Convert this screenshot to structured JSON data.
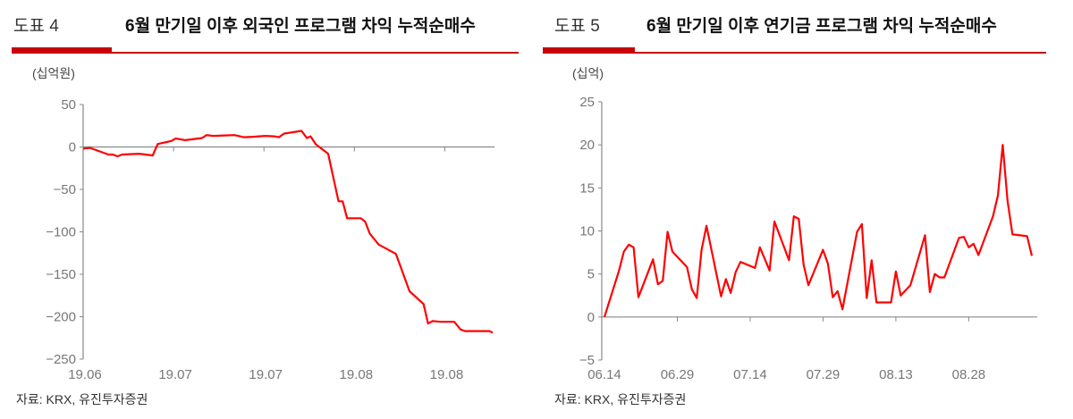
{
  "panels": [
    {
      "figure_no": "도표 4",
      "title": "6월 만기일 이후 외국인 프로그램 차익 누적순매수",
      "unit": "(십억원)",
      "source": "자료: KRX, 유진투자증권"
    },
    {
      "figure_no": "도표 5",
      "title": "6월 만기일 이후 연기금 프로그램 차익 누적순매수",
      "unit": "(십억)",
      "source": "자료: KRX, 유진투자증권"
    }
  ],
  "colors": {
    "accent": "#c8000a",
    "line": "#ff0000",
    "axis": "#888888"
  },
  "chart_data": [
    {
      "type": "line",
      "title": "6월 만기일 이후 외국인 프로그램 차익 누적순매수",
      "ylabel": "(십억원)",
      "ylim": [
        -250,
        50
      ],
      "yticks": [
        50,
        0,
        -50,
        -100,
        -150,
        -200,
        -250
      ],
      "ytick_labels": [
        "50",
        "0",
        "-50",
        "-100",
        "-150",
        "-200",
        "-250"
      ],
      "xlim": [
        0,
        90.6
      ],
      "xticks": [
        0,
        20,
        40,
        60,
        80
      ],
      "xtick_labels": [
        "19.06",
        "19.07",
        "19.07",
        "19.08",
        "19.08"
      ],
      "series": [
        {
          "name": "외국인 프로그램 차익 누적순매수",
          "x": [
            0,
            1.5,
            5.6,
            6.6,
            7.6,
            8.6,
            12.4,
            15.4,
            16.5,
            19.5,
            20.5,
            22.6,
            26.3,
            27.3,
            28.7,
            33.5,
            35.5,
            37.6,
            40.3,
            42.3,
            43.3,
            44.4,
            48.3,
            49.5,
            50.3,
            51.5,
            54.2,
            56.5,
            57.4,
            58.4,
            61.4,
            62.4,
            63.4,
            65.4,
            69.2,
            72.2,
            75.3,
            76.3,
            77.3,
            79,
            82.1,
            83.5,
            84.5,
            85.9,
            89.9,
            90.6
          ],
          "y": [
            -2,
            -1,
            -9,
            -9,
            -11,
            -9,
            -8,
            -10,
            3.5,
            7,
            10,
            8,
            10.5,
            14,
            13,
            14,
            11.5,
            12,
            13,
            12.5,
            11.5,
            15.7,
            19,
            10.5,
            12.5,
            3,
            -8,
            -64,
            -64,
            -84,
            -84,
            -88,
            -102,
            -115,
            -126,
            -170,
            -185,
            -208,
            -205,
            -206,
            -206,
            -215,
            -217,
            -217,
            -217,
            -219
          ]
        }
      ],
      "grid": false
    },
    {
      "type": "line",
      "title": "6월 만기일 이후 연기금 프로그램 차익 누적순매수",
      "ylabel": "(십억)",
      "ylim": [
        -5,
        25
      ],
      "yticks": [
        25,
        20,
        15,
        10,
        5,
        0,
        -5
      ],
      "ytick_labels": [
        "25",
        "20",
        "15",
        "10",
        "5",
        "0",
        "-5"
      ],
      "xlim": [
        0,
        88
      ],
      "xticks": [
        0,
        15,
        30,
        45,
        60,
        75
      ],
      "xtick_labels": [
        "06.14",
        "06.29",
        "07.14",
        "07.29",
        "08.13",
        "08.28"
      ],
      "series": [
        {
          "name": "연기금 프로그램 차익 누적순매수",
          "x": [
            0,
            3,
            4,
            5,
            6,
            7,
            10,
            11,
            12,
            13,
            14,
            17,
            18,
            19,
            20,
            21,
            24,
            25,
            26,
            27,
            28,
            31,
            32,
            34,
            35,
            38,
            39,
            40,
            41,
            42,
            45,
            46,
            47,
            48,
            49,
            52,
            53,
            54,
            55,
            56,
            59,
            60,
            61,
            63,
            66,
            67,
            68,
            69,
            70,
            73,
            74,
            75,
            76,
            77,
            80,
            81,
            82,
            83,
            84,
            87,
            88
          ],
          "y": [
            0,
            5.4,
            7.6,
            8.4,
            8.1,
            2.3,
            6.7,
            3.8,
            4.2,
            9.9,
            7.6,
            5.8,
            3.2,
            2.2,
            7.8,
            10.6,
            2.4,
            4.4,
            2.8,
            5.2,
            6.4,
            5.7,
            8.1,
            5.4,
            11.1,
            6.6,
            11.7,
            11.4,
            6.1,
            3.7,
            7.8,
            6.2,
            2.3,
            3.0,
            0.9,
            9.9,
            10.8,
            2.2,
            6.6,
            1.7,
            1.7,
            5.3,
            2.5,
            3.7,
            9.5,
            2.9,
            5.0,
            4.6,
            4.6,
            9.2,
            9.3,
            8.1,
            8.5,
            7.2,
            11.7,
            14.1,
            20.0,
            13.5,
            9.6,
            9.4,
            7.1
          ]
        }
      ],
      "grid": false
    }
  ]
}
